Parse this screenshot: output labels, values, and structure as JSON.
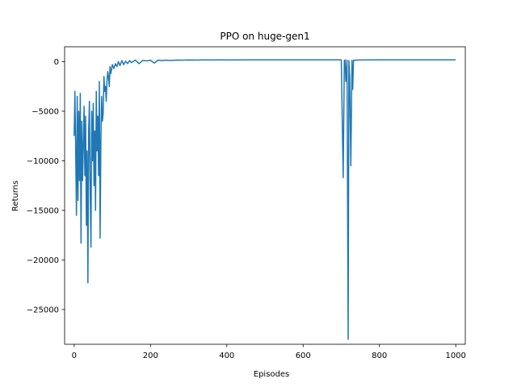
{
  "chart_data": {
    "type": "line",
    "title": "PPO on huge-gen1",
    "xlabel": "Episodes",
    "ylabel": "Returns",
    "xlim": [
      -25,
      1025
    ],
    "ylim": [
      -28500,
      1500
    ],
    "x_ticks": [
      0,
      200,
      400,
      600,
      800,
      1000
    ],
    "x_tick_labels": [
      "0",
      "200",
      "400",
      "600",
      "800",
      "1000"
    ],
    "y_ticks": [
      0,
      -5000,
      -10000,
      -15000,
      -20000,
      -25000
    ],
    "y_tick_labels": [
      "0",
      "−5000",
      "−10000",
      "−15000",
      "−20000",
      "−25000"
    ],
    "grid": false,
    "legend": "none",
    "series": [
      {
        "color": "#1f77b4",
        "x": [
          0,
          2,
          4,
          6,
          8,
          10,
          12,
          14,
          16,
          18,
          20,
          22,
          24,
          26,
          28,
          30,
          32,
          34,
          36,
          38,
          40,
          42,
          44,
          46,
          48,
          50,
          52,
          54,
          56,
          58,
          60,
          62,
          64,
          66,
          68,
          70,
          72,
          74,
          76,
          78,
          80,
          82,
          84,
          86,
          88,
          90,
          92,
          94,
          96,
          98,
          100,
          104,
          108,
          112,
          116,
          120,
          125,
          130,
          135,
          140,
          145,
          150,
          160,
          170,
          180,
          190,
          200,
          210,
          220,
          230,
          240,
          250,
          260,
          270,
          280,
          300,
          320,
          340,
          360,
          380,
          400,
          450,
          500,
          550,
          600,
          650,
          700,
          705,
          708,
          710,
          712,
          715,
          718,
          720,
          722,
          725,
          728,
          730,
          732,
          735,
          740,
          750,
          800,
          850,
          900,
          950,
          1000
        ],
        "y": [
          -7500,
          -3000,
          -9000,
          -15500,
          -3500,
          -14000,
          -5000,
          -12000,
          -3200,
          -18300,
          -6000,
          -12000,
          -8500,
          -4500,
          -11500,
          -5500,
          -16500,
          -9000,
          -22300,
          -7000,
          -4000,
          -13000,
          -18700,
          -5000,
          -10000,
          -4200,
          -12500,
          -7000,
          -15000,
          -3000,
          -9000,
          -5500,
          -11500,
          -2000,
          -17800,
          -8000,
          -3500,
          -6000,
          -5200,
          -1500,
          -3000,
          -2500,
          -4000,
          -2000,
          -1000,
          -1500,
          -2500,
          -500,
          -1200,
          -800,
          -300,
          -700,
          -200,
          -500,
          0,
          -400,
          100,
          -300,
          50,
          -200,
          100,
          -100,
          150,
          -200,
          120,
          80,
          140,
          -150,
          160,
          100,
          150,
          120,
          140,
          160,
          150,
          170,
          160,
          180,
          165,
          175,
          170,
          175,
          180,
          175,
          180,
          178,
          180,
          -11700,
          100,
          180,
          -2000,
          150,
          -28000,
          100,
          -1500,
          -10500,
          120,
          -2800,
          150,
          140,
          160,
          170,
          175,
          180,
          178,
          180,
          180
        ]
      }
    ]
  }
}
